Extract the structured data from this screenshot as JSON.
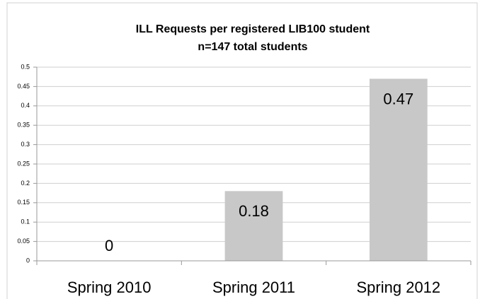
{
  "chart_data": {
    "type": "bar",
    "title": "ILL Requests per registered LIB100 student",
    "subtitle": "n=147 total students",
    "categories": [
      "Spring 2010",
      "Spring 2011",
      "Spring 2012"
    ],
    "values": [
      0,
      0.18,
      0.47
    ],
    "color": "#c8c8c8",
    "ylim": [
      0,
      0.5
    ],
    "yticks": [
      0,
      0.05,
      0.1,
      0.15,
      0.2,
      0.25,
      0.3,
      0.35,
      0.4,
      0.45,
      0.5
    ],
    "grid": true
  }
}
